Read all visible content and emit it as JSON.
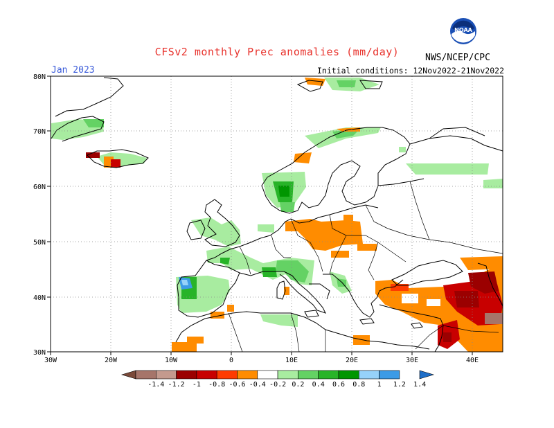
{
  "header": {
    "title": "CFSv2 monthly Prec anomalies (mm/day)",
    "month": "Jan 2023",
    "initial_conditions": "Initial conditions: 12Nov2022-21Nov2022",
    "agency": "NWS/NCEP/CPC",
    "logo_text": "NOAA"
  },
  "map": {
    "x_ticks": [
      "30W",
      "20W",
      "10W",
      "0",
      "10E",
      "20E",
      "30E",
      "40E"
    ],
    "y_ticks": [
      "80N",
      "70N",
      "60N",
      "50N",
      "40N",
      "30N"
    ]
  },
  "legend": {
    "labels": [
      "-1.4",
      "-1.2",
      "-1",
      "-0.8",
      "-0.6",
      "-0.4",
      "-0.2",
      "0.2",
      "0.4",
      "0.6",
      "0.8",
      "1",
      "1.2",
      "1.4"
    ],
    "colors": [
      "#7b4a3a",
      "#a6756a",
      "#c49a8e",
      "#9b0000",
      "#c80000",
      "#ff3b00",
      "#ff8c00",
      "#ffffff",
      "#a8eca0",
      "#64d264",
      "#28b428",
      "#009600",
      "#96d2fa",
      "#3c9be6",
      "#1e6ec8"
    ]
  }
}
